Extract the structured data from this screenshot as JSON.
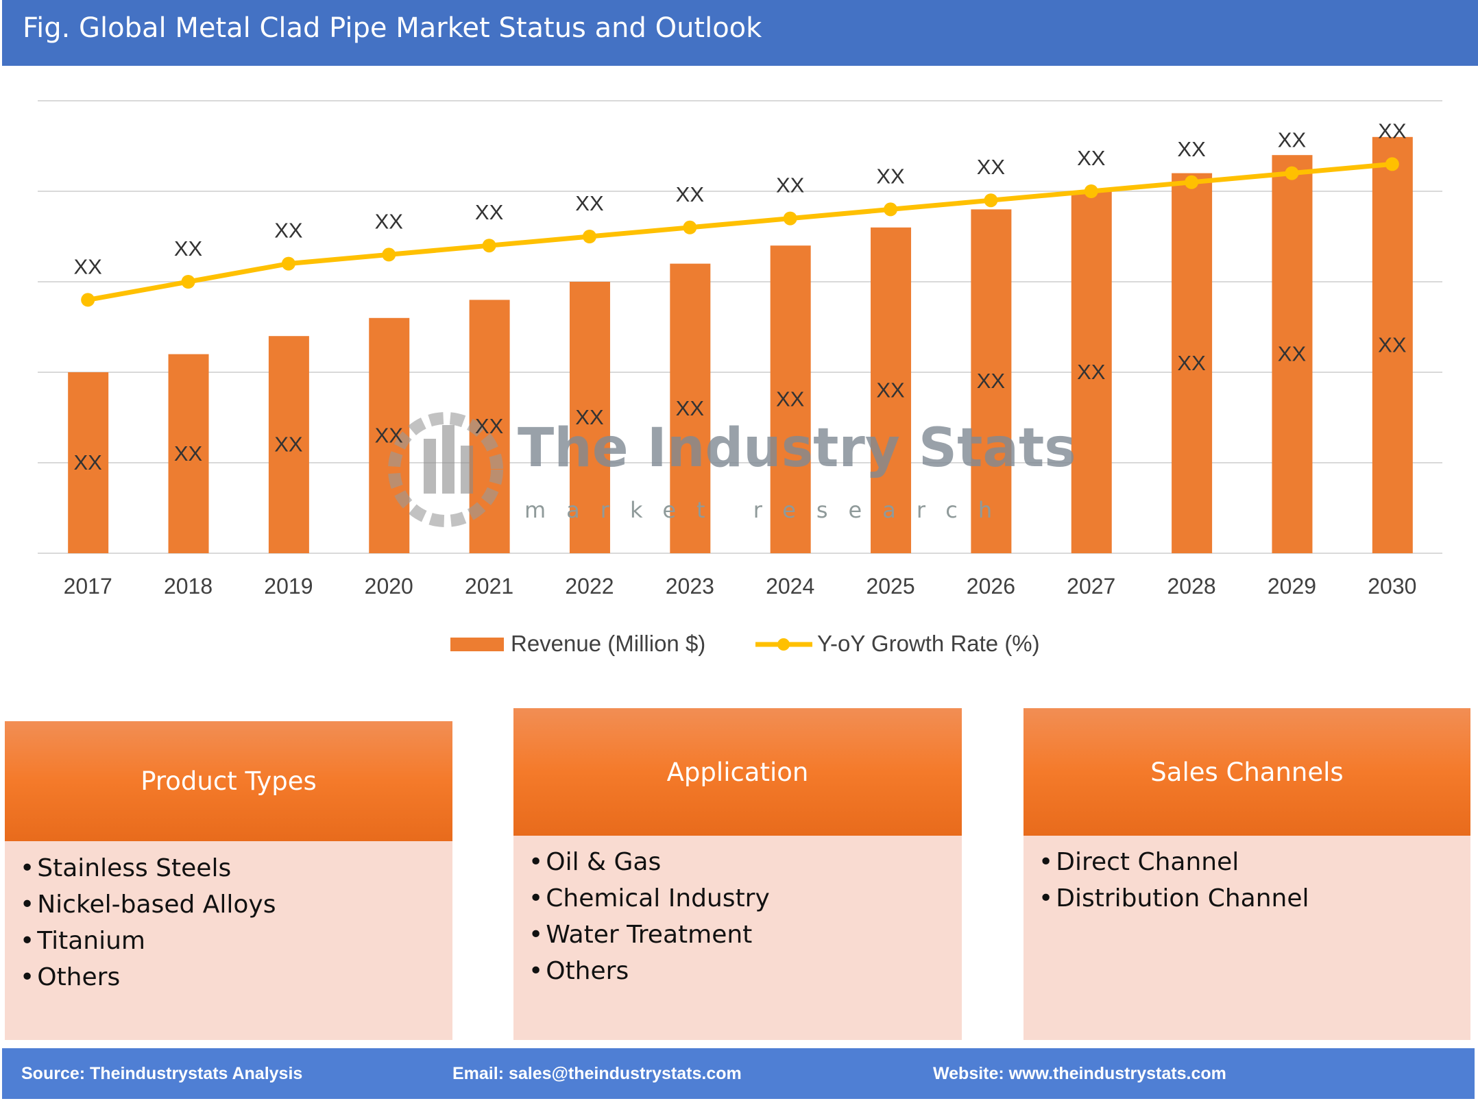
{
  "header": {
    "title": "Fig. Global Metal Clad Pipe Market Status and Outlook"
  },
  "chart_data": {
    "type": "bar+line",
    "categories": [
      "2017",
      "2018",
      "2019",
      "2020",
      "2021",
      "2022",
      "2023",
      "2024",
      "2025",
      "2026",
      "2027",
      "2028",
      "2029",
      "2030"
    ],
    "series": [
      {
        "name": "Revenue (Million $)",
        "type": "bar",
        "color": "#ED7D31",
        "values": [
          2.0,
          2.2,
          2.4,
          2.6,
          2.8,
          3.0,
          3.2,
          3.4,
          3.6,
          3.8,
          4.0,
          4.2,
          4.4,
          4.6
        ],
        "data_labels": [
          "XX",
          "XX",
          "XX",
          "XX",
          "XX",
          "XX",
          "XX",
          "XX",
          "XX",
          "XX",
          "XX",
          "XX",
          "XX",
          "XX"
        ]
      },
      {
        "name": "Y-oY Growth Rate (%)",
        "type": "line",
        "color": "#FFC000",
        "values": [
          2.8,
          3.0,
          3.2,
          3.3,
          3.4,
          3.5,
          3.6,
          3.7,
          3.8,
          3.9,
          4.0,
          4.1,
          4.2,
          4.3
        ],
        "data_labels": [
          "XX",
          "XX",
          "XX",
          "XX",
          "XX",
          "XX",
          "XX",
          "XX",
          "XX",
          "XX",
          "XX",
          "XX",
          "XX",
          "XX"
        ]
      }
    ],
    "ylim": [
      0,
      5
    ],
    "y_tick_labels": "none",
    "grid": true,
    "legend": "bottom"
  },
  "watermark": {
    "line1": "The Industry Stats",
    "line2": "market research"
  },
  "boxes": [
    {
      "title": "Product Types",
      "items": [
        "Stainless Steels",
        "Nickel-based Alloys",
        "Titanium",
        "Others"
      ]
    },
    {
      "title": "Application",
      "items": [
        "Oil & Gas",
        "Chemical Industry",
        "Water Treatment",
        "Others"
      ]
    },
    {
      "title": "Sales Channels",
      "items": [
        "Direct Channel",
        "Distribution Channel"
      ]
    }
  ],
  "footer": {
    "source": "Source: Theindustrystats Analysis",
    "email": "Email: sales@theindustrystats.com",
    "website": "Website: www.theindustrystats.com"
  }
}
